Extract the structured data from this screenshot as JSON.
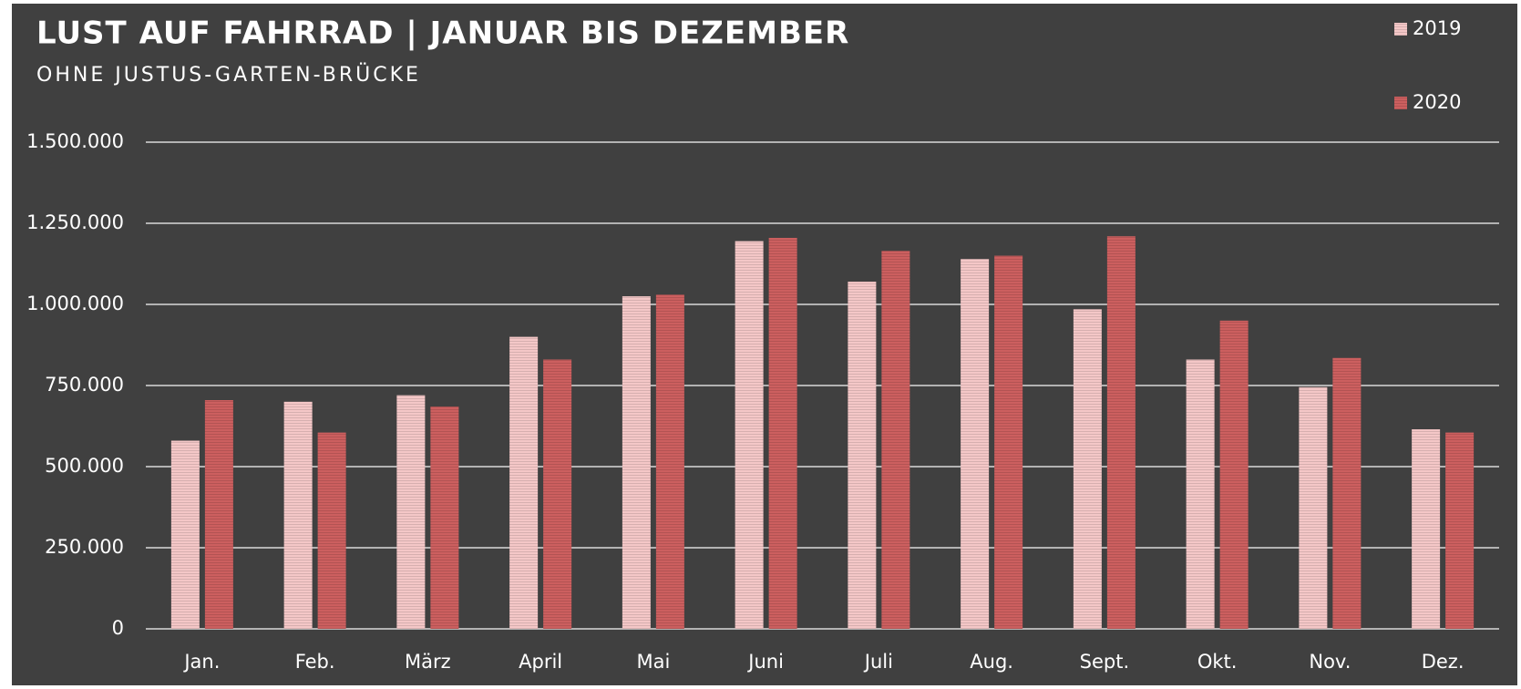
{
  "chart_data": {
    "type": "bar",
    "title": "LUST AUF FAHRRAD | JANUAR BIS DEZEMBER",
    "subtitle": "OHNE JUSTUS-GARTEN-BRÜCKE",
    "categories": [
      "Jan.",
      "Feb.",
      "März",
      "April",
      "Mai",
      "Juni",
      "Juli",
      "Aug.",
      "Sept.",
      "Okt.",
      "Nov.",
      "Dez."
    ],
    "series": [
      {
        "name": "2019",
        "color": "#f4c7c7",
        "values": [
          580000,
          700000,
          720000,
          900000,
          1025000,
          1195000,
          1070000,
          1140000,
          985000,
          830000,
          745000,
          615000
        ]
      },
      {
        "name": "2020",
        "color": "#cc5f5f",
        "values": [
          705000,
          605000,
          685000,
          830000,
          1030000,
          1205000,
          1165000,
          1150000,
          1210000,
          950000,
          835000,
          605000
        ]
      }
    ],
    "ylim": [
      0,
      1500000
    ],
    "yticks": [
      0,
      {
        "value": 250000,
        "label": "250.000"
      },
      {
        "value": 500000,
        "label": "500.000"
      },
      {
        "value": 750000,
        "label": "750.000"
      },
      {
        "value": 1000000,
        "label": "1.000.000"
      },
      {
        "value": 1250000,
        "label": "1.250.000"
      },
      {
        "value": 1500000,
        "label": "1.500.000"
      }
    ],
    "grid": true,
    "legend": "top-right"
  }
}
